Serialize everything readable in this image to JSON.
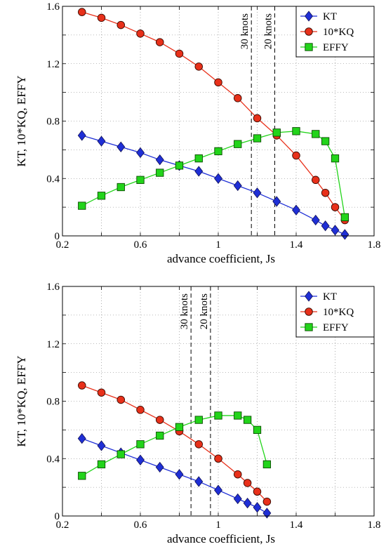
{
  "chart_data": [
    {
      "type": "line",
      "xlabel": "advance coefficient, Js",
      "ylabel": "KT, 10*KQ, EFFY",
      "xlim": [
        0.2,
        1.8
      ],
      "ylim": [
        0,
        1.6
      ],
      "xticks": [
        "0.2",
        "0.6",
        "1",
        "1.4",
        "1.8"
      ],
      "yticks": [
        "0",
        "0.4",
        "0.8",
        "1.2",
        "1.6"
      ],
      "grid": true,
      "legend": "top-right",
      "series": [
        {
          "name": "KT",
          "marker": "diamond",
          "color": "#1f2fd6",
          "x": [
            0.3,
            0.4,
            0.5,
            0.6,
            0.7,
            0.8,
            0.9,
            1.0,
            1.1,
            1.2,
            1.3,
            1.4,
            1.5,
            1.55,
            1.6,
            1.65
          ],
          "y": [
            0.7,
            0.66,
            0.62,
            0.58,
            0.53,
            0.49,
            0.45,
            0.4,
            0.35,
            0.3,
            0.24,
            0.18,
            0.11,
            0.07,
            0.04,
            0.01
          ]
        },
        {
          "name": "10*KQ",
          "marker": "circle",
          "color": "#e8301a",
          "x": [
            0.3,
            0.4,
            0.5,
            0.6,
            0.7,
            0.8,
            0.9,
            1.0,
            1.1,
            1.2,
            1.3,
            1.4,
            1.5,
            1.55,
            1.6,
            1.65
          ],
          "y": [
            1.56,
            1.52,
            1.47,
            1.41,
            1.35,
            1.27,
            1.18,
            1.07,
            0.96,
            0.82,
            0.7,
            0.56,
            0.39,
            0.3,
            0.2,
            0.11
          ]
        },
        {
          "name": "EFFY",
          "marker": "square",
          "color": "#22d41a",
          "x": [
            0.3,
            0.4,
            0.5,
            0.6,
            0.7,
            0.8,
            0.9,
            1.0,
            1.1,
            1.2,
            1.3,
            1.4,
            1.5,
            1.55,
            1.6,
            1.65
          ],
          "y": [
            0.21,
            0.28,
            0.34,
            0.39,
            0.44,
            0.49,
            0.54,
            0.59,
            0.64,
            0.68,
            0.72,
            0.73,
            0.71,
            0.66,
            0.54,
            0.13
          ]
        }
      ],
      "annotations": [
        {
          "text": "30 knots",
          "x": 1.17
        },
        {
          "text": "20 knots",
          "x": 1.29
        }
      ]
    },
    {
      "type": "line",
      "xlabel": "advance coefficient, Js",
      "ylabel": "KT, 10*KQ, EFFY",
      "xlim": [
        0.2,
        1.8
      ],
      "ylim": [
        0,
        1.6
      ],
      "xticks": [
        "0.2",
        "0.6",
        "1",
        "1.4",
        "1.8"
      ],
      "yticks": [
        "0",
        "0.4",
        "0.8",
        "1.2",
        "1.6"
      ],
      "grid": true,
      "legend": "top-right",
      "series": [
        {
          "name": "KT",
          "marker": "diamond",
          "color": "#1f2fd6",
          "x": [
            0.3,
            0.4,
            0.5,
            0.6,
            0.7,
            0.8,
            0.9,
            1.0,
            1.1,
            1.15,
            1.2,
            1.25
          ],
          "y": [
            0.54,
            0.49,
            0.44,
            0.39,
            0.34,
            0.29,
            0.24,
            0.18,
            0.12,
            0.09,
            0.06,
            0.02
          ]
        },
        {
          "name": "10*KQ",
          "marker": "circle",
          "color": "#e8301a",
          "x": [
            0.3,
            0.4,
            0.5,
            0.6,
            0.7,
            0.8,
            0.9,
            1.0,
            1.1,
            1.15,
            1.2,
            1.25
          ],
          "y": [
            0.91,
            0.86,
            0.81,
            0.74,
            0.67,
            0.59,
            0.5,
            0.4,
            0.29,
            0.23,
            0.17,
            0.1
          ]
        },
        {
          "name": "EFFY",
          "marker": "square",
          "color": "#22d41a",
          "x": [
            0.3,
            0.4,
            0.5,
            0.6,
            0.7,
            0.8,
            0.9,
            1.0,
            1.1,
            1.15,
            1.2,
            1.25
          ],
          "y": [
            0.28,
            0.36,
            0.43,
            0.5,
            0.56,
            0.62,
            0.67,
            0.7,
            0.7,
            0.67,
            0.6,
            0.36
          ]
        }
      ],
      "annotations": [
        {
          "text": "30 knots",
          "x": 0.86
        },
        {
          "text": "20 knots",
          "x": 0.96
        }
      ]
    }
  ]
}
